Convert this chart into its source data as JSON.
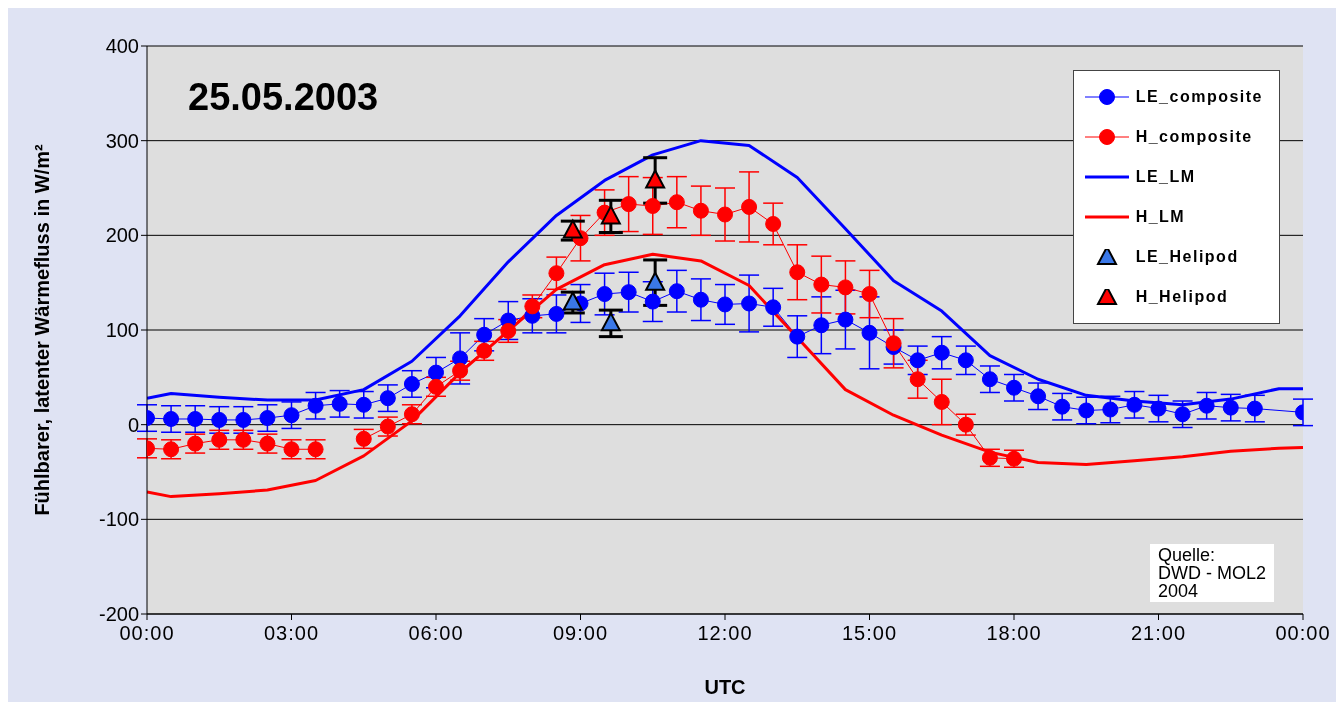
{
  "chart_data": {
    "type": "line",
    "title": "25.05.2003",
    "xlabel": "UTC",
    "ylabel": "Fühlbarer, latenter Wärmefluss in W/m²",
    "annotations": [
      "Quelle:\nDWD - MOL2\n2004"
    ],
    "xlim": [
      0,
      24
    ],
    "xticks": [
      {
        "value": 0,
        "label": "00:00"
      },
      {
        "value": 3,
        "label": "03:00"
      },
      {
        "value": 6,
        "label": "06:00"
      },
      {
        "value": 9,
        "label": "09:00"
      },
      {
        "value": 12,
        "label": "12:00"
      },
      {
        "value": 15,
        "label": "15:00"
      },
      {
        "value": 18,
        "label": "18:00"
      },
      {
        "value": 21,
        "label": "21:00"
      },
      {
        "value": 24,
        "label": "00:00"
      }
    ],
    "ylim": [
      -200,
      400
    ],
    "yticks": [
      -200,
      -100,
      0,
      100,
      200,
      300,
      400
    ],
    "grid": "y",
    "legend": "top right",
    "line_style": "solid",
    "series": [
      {
        "name": "LE_composite",
        "marker": "circle",
        "color": "#0000ff",
        "x": [
          0,
          0.5,
          1,
          1.5,
          2,
          2.5,
          3,
          3.5,
          4,
          4.5,
          5,
          5.5,
          6,
          6.5,
          7,
          7.5,
          8,
          8.5,
          9,
          9.5,
          10,
          10.5,
          11,
          11.5,
          12,
          12.5,
          13,
          13.5,
          14,
          14.5,
          15,
          15.5,
          16,
          16.5,
          17,
          17.5,
          18,
          18.5,
          19,
          19.5,
          20,
          20.5,
          21,
          21.5,
          22,
          22.5,
          23,
          24
        ],
        "values": [
          7,
          6,
          6,
          5,
          5,
          7,
          10,
          20,
          22,
          21,
          28,
          43,
          55,
          70,
          95,
          110,
          115,
          117,
          128,
          138,
          140,
          130,
          141,
          132,
          127,
          128,
          124,
          93,
          105,
          111,
          97,
          82,
          68,
          76,
          68,
          48,
          39,
          30,
          19,
          15,
          16,
          21,
          17,
          11,
          20,
          18,
          17,
          13
        ],
        "errors": [
          14,
          14,
          14,
          14,
          14,
          14,
          14,
          14,
          14,
          14,
          14,
          14,
          16,
          27,
          17,
          20,
          18,
          20,
          20,
          22,
          21,
          21,
          22,
          22,
          21,
          30,
          20,
          22,
          30,
          31,
          38,
          18,
          15,
          17,
          15,
          14,
          14,
          14,
          14,
          14,
          14,
          14,
          14,
          14,
          14,
          14,
          14,
          14
        ]
      },
      {
        "name": "H_composite",
        "marker": "circle",
        "color": "#ff0000",
        "x": [
          0,
          0.5,
          1,
          1.5,
          2,
          2.5,
          3,
          3.5,
          4,
          4.5,
          5,
          5.5,
          6,
          6.5,
          7,
          7.5,
          8,
          8.5,
          9,
          9.5,
          10,
          10.5,
          11,
          11.5,
          12,
          12.5,
          13,
          13.5,
          14,
          14.5,
          15,
          15.5,
          16,
          16.5,
          17,
          17.5,
          18
        ],
        "values": [
          -25,
          -26,
          -20,
          -16,
          -16,
          -20,
          -26,
          -26,
          null,
          -15,
          -2,
          11,
          40,
          57,
          78,
          99,
          125,
          160,
          197,
          224,
          233,
          231,
          235,
          226,
          222,
          230,
          212,
          161,
          148,
          145,
          138,
          86,
          48,
          24,
          0,
          -35,
          -36
        ],
        "errors": [
          10,
          10,
          10,
          10,
          10,
          10,
          10,
          10,
          null,
          10,
          10,
          10,
          10,
          10,
          10,
          12,
          12,
          17,
          24,
          24,
          29,
          30,
          27,
          26,
          28,
          37,
          22,
          29,
          30,
          28,
          25,
          26,
          20,
          24,
          11,
          9,
          9
        ]
      },
      {
        "name": "LE_LM",
        "marker": "none",
        "color": "#0000ff",
        "x": [
          0,
          0.5,
          1.5,
          2.5,
          3.5,
          4.5,
          5.5,
          6.5,
          7.5,
          8.5,
          9.5,
          10.5,
          11.5,
          12.5,
          13.5,
          14.5,
          15.5,
          16.5,
          17.5,
          18.5,
          19.5,
          20.5,
          21.5,
          22.5,
          23.5,
          24
        ],
        "values": [
          28,
          33,
          29,
          26,
          26,
          37,
          67,
          115,
          172,
          221,
          258,
          285,
          300,
          295,
          261,
          207,
          152,
          120,
          73,
          48,
          31,
          25,
          21,
          27,
          38,
          38
        ]
      },
      {
        "name": "H_LM",
        "marker": "none",
        "color": "#ff0000",
        "x": [
          0,
          0.5,
          1.5,
          2.5,
          3.5,
          4.5,
          5.5,
          6.5,
          7.5,
          8.5,
          9.5,
          10.5,
          11.5,
          12.5,
          13.5,
          14.5,
          15.5,
          16.5,
          17.5,
          18.5,
          19.5,
          20.5,
          21.5,
          22.5,
          23.5,
          24
        ],
        "values": [
          -71,
          -76,
          -73,
          -69,
          -59,
          -33,
          4,
          55,
          99,
          143,
          169,
          180,
          173,
          147,
          92,
          37,
          10,
          -11,
          -29,
          -40,
          -42,
          -38,
          -34,
          -28,
          -25,
          -24
        ]
      },
      {
        "name": "LE_Helipod",
        "type": "scatter",
        "marker": "triangle",
        "color": "#3a78e8",
        "x": [
          8.84,
          9.63,
          10.55
        ],
        "values": [
          129,
          107,
          150
        ],
        "errors": [
          11,
          14,
          24
        ]
      },
      {
        "name": "H_Helipod",
        "type": "scatter",
        "marker": "triangle",
        "color": "#ff0000",
        "x": [
          8.84,
          9.63,
          10.55
        ],
        "values": [
          205,
          220,
          258
        ],
        "errors": [
          10,
          17,
          24
        ]
      }
    ]
  }
}
